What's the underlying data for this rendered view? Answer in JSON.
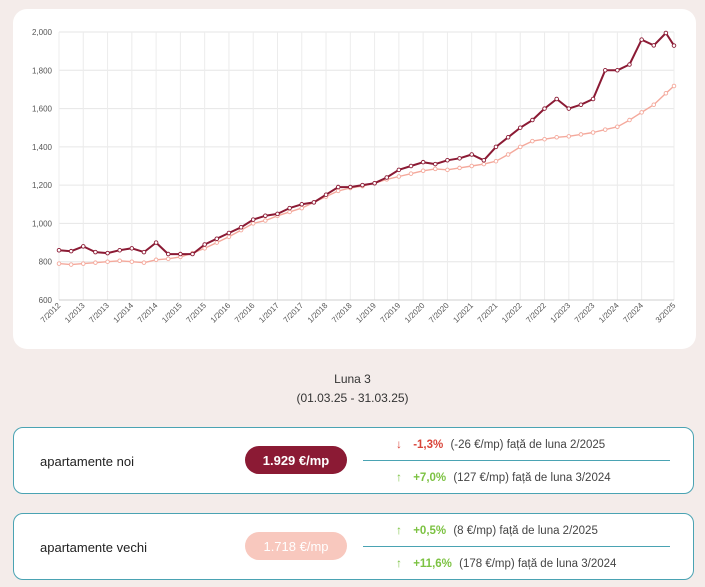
{
  "chart_data": {
    "type": "line",
    "title": "",
    "xlabel": "",
    "ylabel": "",
    "ylim": [
      600,
      2000
    ],
    "yticks": [
      "600",
      "800",
      "1,000",
      "1,200",
      "1,400",
      "1,600",
      "1,800",
      "2,000"
    ],
    "x_tick_labels": [
      "7/2012",
      "1/2013",
      "7/2013",
      "1/2014",
      "7/2014",
      "1/2015",
      "7/2015",
      "1/2016",
      "7/2016",
      "1/2017",
      "7/2017",
      "1/2018",
      "7/2018",
      "1/2019",
      "7/2019",
      "1/2020",
      "7/2020",
      "1/2021",
      "7/2021",
      "1/2022",
      "7/2022",
      "1/2023",
      "7/2023",
      "1/2024",
      "7/2024",
      "3/2025"
    ],
    "grid": true,
    "legend": "none",
    "series": [
      {
        "name": "apartamente noi",
        "color": "#8b1a34",
        "points": [
          [
            "7/2012",
            860
          ],
          [
            "10/2012",
            855
          ],
          [
            "1/2013",
            880
          ],
          [
            "4/2013",
            850
          ],
          [
            "7/2013",
            845
          ],
          [
            "10/2013",
            860
          ],
          [
            "1/2014",
            870
          ],
          [
            "4/2014",
            850
          ],
          [
            "7/2014",
            900
          ],
          [
            "10/2014",
            840
          ],
          [
            "1/2015",
            840
          ],
          [
            "4/2015",
            840
          ],
          [
            "7/2015",
            890
          ],
          [
            "10/2015",
            920
          ],
          [
            "1/2016",
            950
          ],
          [
            "4/2016",
            980
          ],
          [
            "7/2016",
            1020
          ],
          [
            "10/2016",
            1040
          ],
          [
            "1/2017",
            1050
          ],
          [
            "4/2017",
            1080
          ],
          [
            "7/2017",
            1100
          ],
          [
            "10/2017",
            1110
          ],
          [
            "1/2018",
            1150
          ],
          [
            "4/2018",
            1190
          ],
          [
            "7/2018",
            1190
          ],
          [
            "10/2018",
            1200
          ],
          [
            "1/2019",
            1210
          ],
          [
            "4/2019",
            1240
          ],
          [
            "7/2019",
            1280
          ],
          [
            "10/2019",
            1300
          ],
          [
            "1/2020",
            1320
          ],
          [
            "4/2020",
            1310
          ],
          [
            "7/2020",
            1330
          ],
          [
            "10/2020",
            1340
          ],
          [
            "1/2021",
            1360
          ],
          [
            "4/2021",
            1330
          ],
          [
            "7/2021",
            1400
          ],
          [
            "10/2021",
            1450
          ],
          [
            "1/2022",
            1500
          ],
          [
            "4/2022",
            1540
          ],
          [
            "7/2022",
            1600
          ],
          [
            "10/2022",
            1650
          ],
          [
            "1/2023",
            1600
          ],
          [
            "4/2023",
            1620
          ],
          [
            "7/2023",
            1650
          ],
          [
            "10/2023",
            1800
          ],
          [
            "1/2024",
            1800
          ],
          [
            "4/2024",
            1830
          ],
          [
            "7/2024",
            1960
          ],
          [
            "10/2024",
            1930
          ],
          [
            "1/2025",
            1995
          ],
          [
            "3/2025",
            1929
          ]
        ]
      },
      {
        "name": "apartamente vechi",
        "color": "#f4a99c",
        "points": [
          [
            "7/2012",
            790
          ],
          [
            "10/2012",
            785
          ],
          [
            "1/2013",
            790
          ],
          [
            "4/2013",
            795
          ],
          [
            "7/2013",
            800
          ],
          [
            "10/2013",
            805
          ],
          [
            "1/2014",
            800
          ],
          [
            "4/2014",
            795
          ],
          [
            "7/2014",
            810
          ],
          [
            "10/2014",
            815
          ],
          [
            "1/2015",
            825
          ],
          [
            "4/2015",
            845
          ],
          [
            "7/2015",
            870
          ],
          [
            "10/2015",
            900
          ],
          [
            "1/2016",
            930
          ],
          [
            "4/2016",
            965
          ],
          [
            "7/2016",
            1000
          ],
          [
            "10/2016",
            1015
          ],
          [
            "1/2017",
            1040
          ],
          [
            "4/2017",
            1060
          ],
          [
            "7/2017",
            1080
          ],
          [
            "10/2017",
            1110
          ],
          [
            "1/2018",
            1140
          ],
          [
            "4/2018",
            1170
          ],
          [
            "7/2018",
            1185
          ],
          [
            "10/2018",
            1195
          ],
          [
            "1/2019",
            1210
          ],
          [
            "4/2019",
            1230
          ],
          [
            "7/2019",
            1245
          ],
          [
            "10/2019",
            1260
          ],
          [
            "1/2020",
            1275
          ],
          [
            "4/2020",
            1285
          ],
          [
            "7/2020",
            1280
          ],
          [
            "10/2020",
            1290
          ],
          [
            "1/2021",
            1300
          ],
          [
            "4/2021",
            1310
          ],
          [
            "7/2021",
            1325
          ],
          [
            "10/2021",
            1360
          ],
          [
            "1/2022",
            1400
          ],
          [
            "4/2022",
            1430
          ],
          [
            "7/2022",
            1440
          ],
          [
            "10/2022",
            1450
          ],
          [
            "1/2023",
            1455
          ],
          [
            "4/2023",
            1465
          ],
          [
            "7/2023",
            1475
          ],
          [
            "10/2023",
            1490
          ],
          [
            "1/2024",
            1505
          ],
          [
            "4/2024",
            1540
          ],
          [
            "7/2024",
            1580
          ],
          [
            "10/2024",
            1620
          ],
          [
            "1/2025",
            1680
          ],
          [
            "3/2025",
            1718
          ]
        ]
      }
    ]
  },
  "period": {
    "title": "Luna 3",
    "range": "(01.03.25 - 31.03.25)"
  },
  "cards": [
    {
      "label": "apartamente noi",
      "price": "1.929 €/mp",
      "changes": [
        {
          "direction": "down",
          "pct": "-1,3%",
          "abs": "(-26 €/mp)",
          "text": "față de luna 2/2025"
        },
        {
          "direction": "up",
          "pct": "+7,0%",
          "abs": "(127 €/mp)",
          "text": "față de luna 3/2024"
        }
      ]
    },
    {
      "label": "apartamente vechi",
      "price": "1.718 €/mp",
      "changes": [
        {
          "direction": "up",
          "pct": "+0,5%",
          "abs": "(8 €/mp)",
          "text": "față de luna 2/2025"
        },
        {
          "direction": "up",
          "pct": "+11,6%",
          "abs": "(178 €/mp)",
          "text": "față de luna 3/2024"
        }
      ]
    }
  ],
  "colors": {
    "up": "#7cc242",
    "down": "#d9453a",
    "accent": "#4aa3b3"
  }
}
